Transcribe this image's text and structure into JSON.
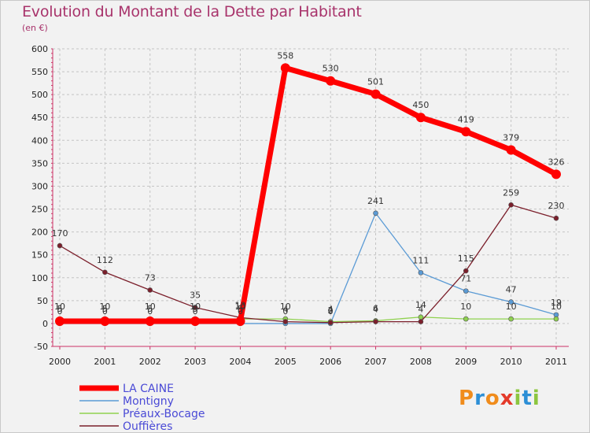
{
  "title": "Evolution du Montant de la Dette par Habitant",
  "subtitle": "(en €)",
  "logo": {
    "text": "Proxiti",
    "letters": [
      "P",
      "r",
      "o",
      "x",
      "i",
      "t",
      "i"
    ],
    "colors": [
      "#f08c1c",
      "#2d8fd6",
      "#f08c1c",
      "#e43a2a",
      "#8cc63f",
      "#2d8fd6",
      "#8cc63f"
    ]
  },
  "chart_data": {
    "type": "line",
    "title": "Evolution du Montant de la Dette par Habitant",
    "ylabel": "(en €)",
    "xlabel": "",
    "categories": [
      "2000",
      "2001",
      "2002",
      "2003",
      "2004",
      "2005",
      "2006",
      "2007",
      "2008",
      "2009",
      "2010",
      "2011"
    ],
    "ylim": [
      -50,
      600
    ],
    "yticks": [
      -50,
      0,
      50,
      100,
      150,
      200,
      250,
      300,
      350,
      400,
      450,
      500,
      550,
      600
    ],
    "ytick_labels": [
      "-50",
      "0",
      "50",
      "100",
      "150",
      "200",
      "250",
      "300",
      "350",
      "400",
      "450",
      "500",
      "550",
      "600"
    ],
    "grid": true,
    "legend_position": "bottom-left",
    "series": [
      {
        "name": "LA CAINE",
        "color": "#ff0000",
        "values": [
          5,
          5,
          5,
          5,
          5,
          558,
          530,
          501,
          450,
          419,
          379,
          326
        ],
        "labels": [
          "5",
          "5",
          "5",
          "5",
          "5",
          "558",
          "530",
          "501",
          "450",
          "419",
          "379",
          "326"
        ]
      },
      {
        "name": "Montigny",
        "color": "#5b9bd5",
        "values": [
          0,
          0,
          0,
          0,
          0,
          0,
          0,
          241,
          111,
          71,
          47,
          19
        ],
        "labels": [
          "0",
          "0",
          "0",
          "0",
          "0",
          "0",
          "0",
          "241",
          "111",
          "71",
          "47",
          "19"
        ]
      },
      {
        "name": "Préaux-Bocage",
        "color": "#8fd14f",
        "values": [
          10,
          10,
          10,
          10,
          10,
          10,
          4,
          6,
          14,
          10,
          10,
          10
        ],
        "labels": [
          "10",
          "10",
          "10",
          "10",
          "10",
          "10",
          "4",
          "6",
          "14",
          "10",
          "10",
          "10"
        ]
      },
      {
        "name": "Ouffières",
        "color": "#7b1f2b",
        "values": [
          170,
          112,
          73,
          35,
          13,
          4,
          2,
          4,
          4,
          115,
          259,
          230
        ],
        "labels": [
          "170",
          "112",
          "73",
          "35",
          "13",
          "4",
          "2",
          "4",
          "4",
          "115",
          "259",
          "230"
        ]
      }
    ]
  }
}
